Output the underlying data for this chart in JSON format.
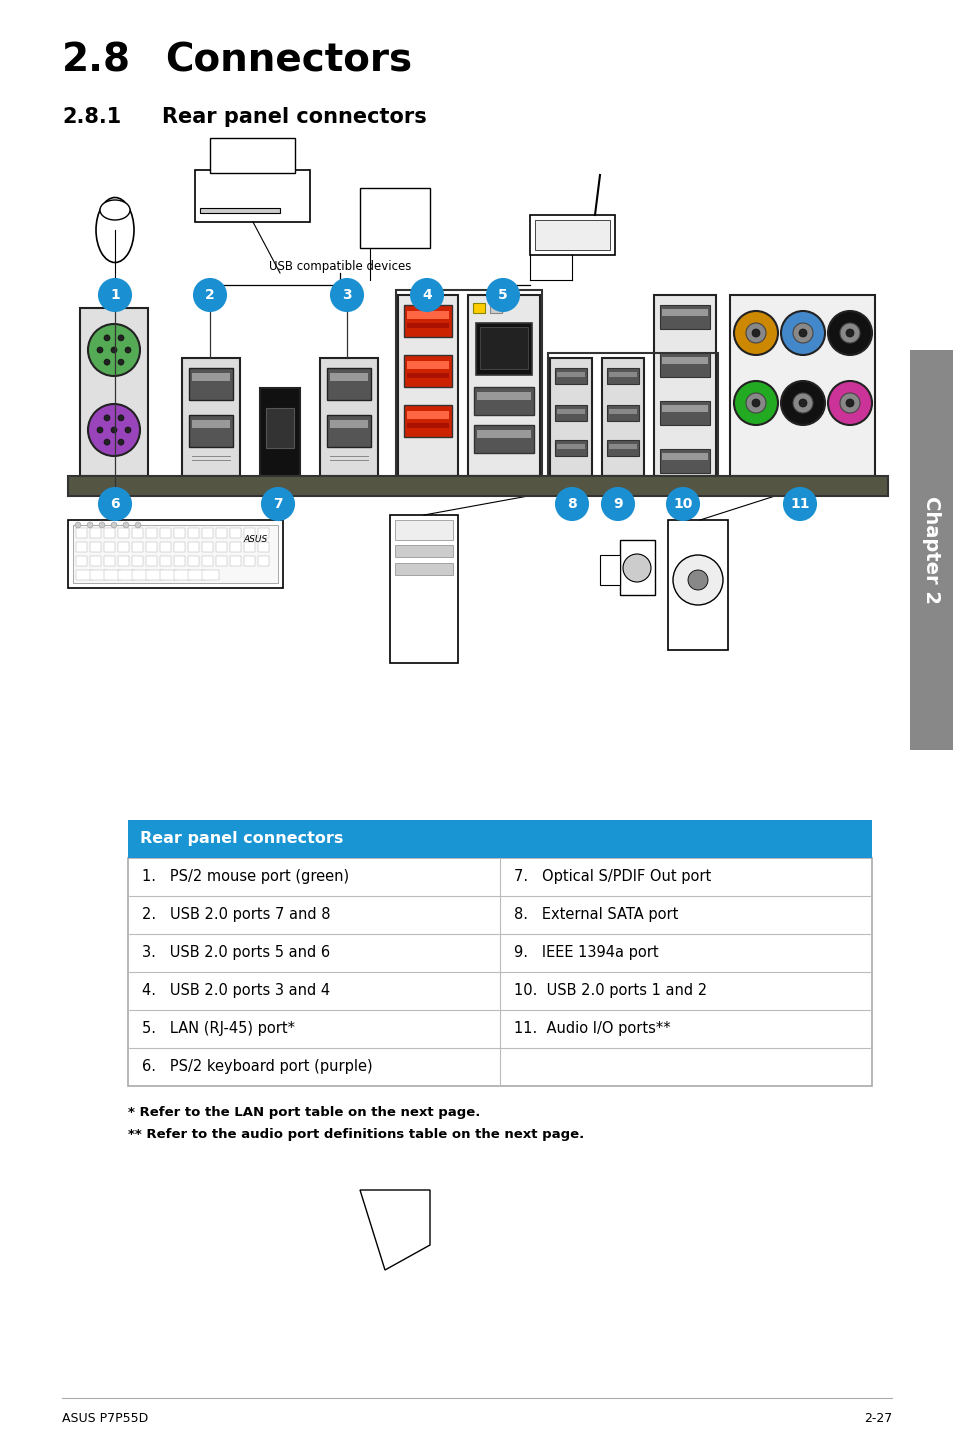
{
  "title1": "2.8",
  "title1_text": "Connectors",
  "title2": "2.8.1",
  "title2_text": "Rear panel connectors",
  "table_header": "Rear panel connectors",
  "table_header_bg": "#1a95d4",
  "table_header_color": "#ffffff",
  "table_rows_left": [
    "1.   PS/2 mouse port (green)",
    "2.   USB 2.0 ports 7 and 8",
    "3.   USB 2.0 ports 5 and 6",
    "4.   USB 2.0 ports 3 and 4",
    "5.   LAN (RJ-45) port*",
    "6.   PS/2 keyboard port (purple)"
  ],
  "table_rows_right": [
    "7.   Optical S/PDIF Out port",
    "8.   External SATA port",
    "9.   IEEE 1394a port",
    "10.  USB 2.0 ports 1 and 2",
    "11.  Audio I/O ports**",
    ""
  ],
  "footnote1": "* Refer to the LAN port table on the next page.",
  "footnote2": "** Refer to the audio port definitions table on the next page.",
  "footer_left": "ASUS P7P55D",
  "footer_right": "2-27",
  "bg_color": "#ffffff",
  "chapter_text": "Chapter 2",
  "usb_label": "USB compatible devices",
  "bubble_color": "#1a8fd1",
  "sidebar_color": "#888888",
  "board_bar_color": "#555544",
  "audio_colors": [
    "#cc8800",
    "#4488cc",
    "#111111",
    "#22aa22",
    "#111111",
    "#cc3399"
  ],
  "audio_outline_color": "#aaaaaa"
}
